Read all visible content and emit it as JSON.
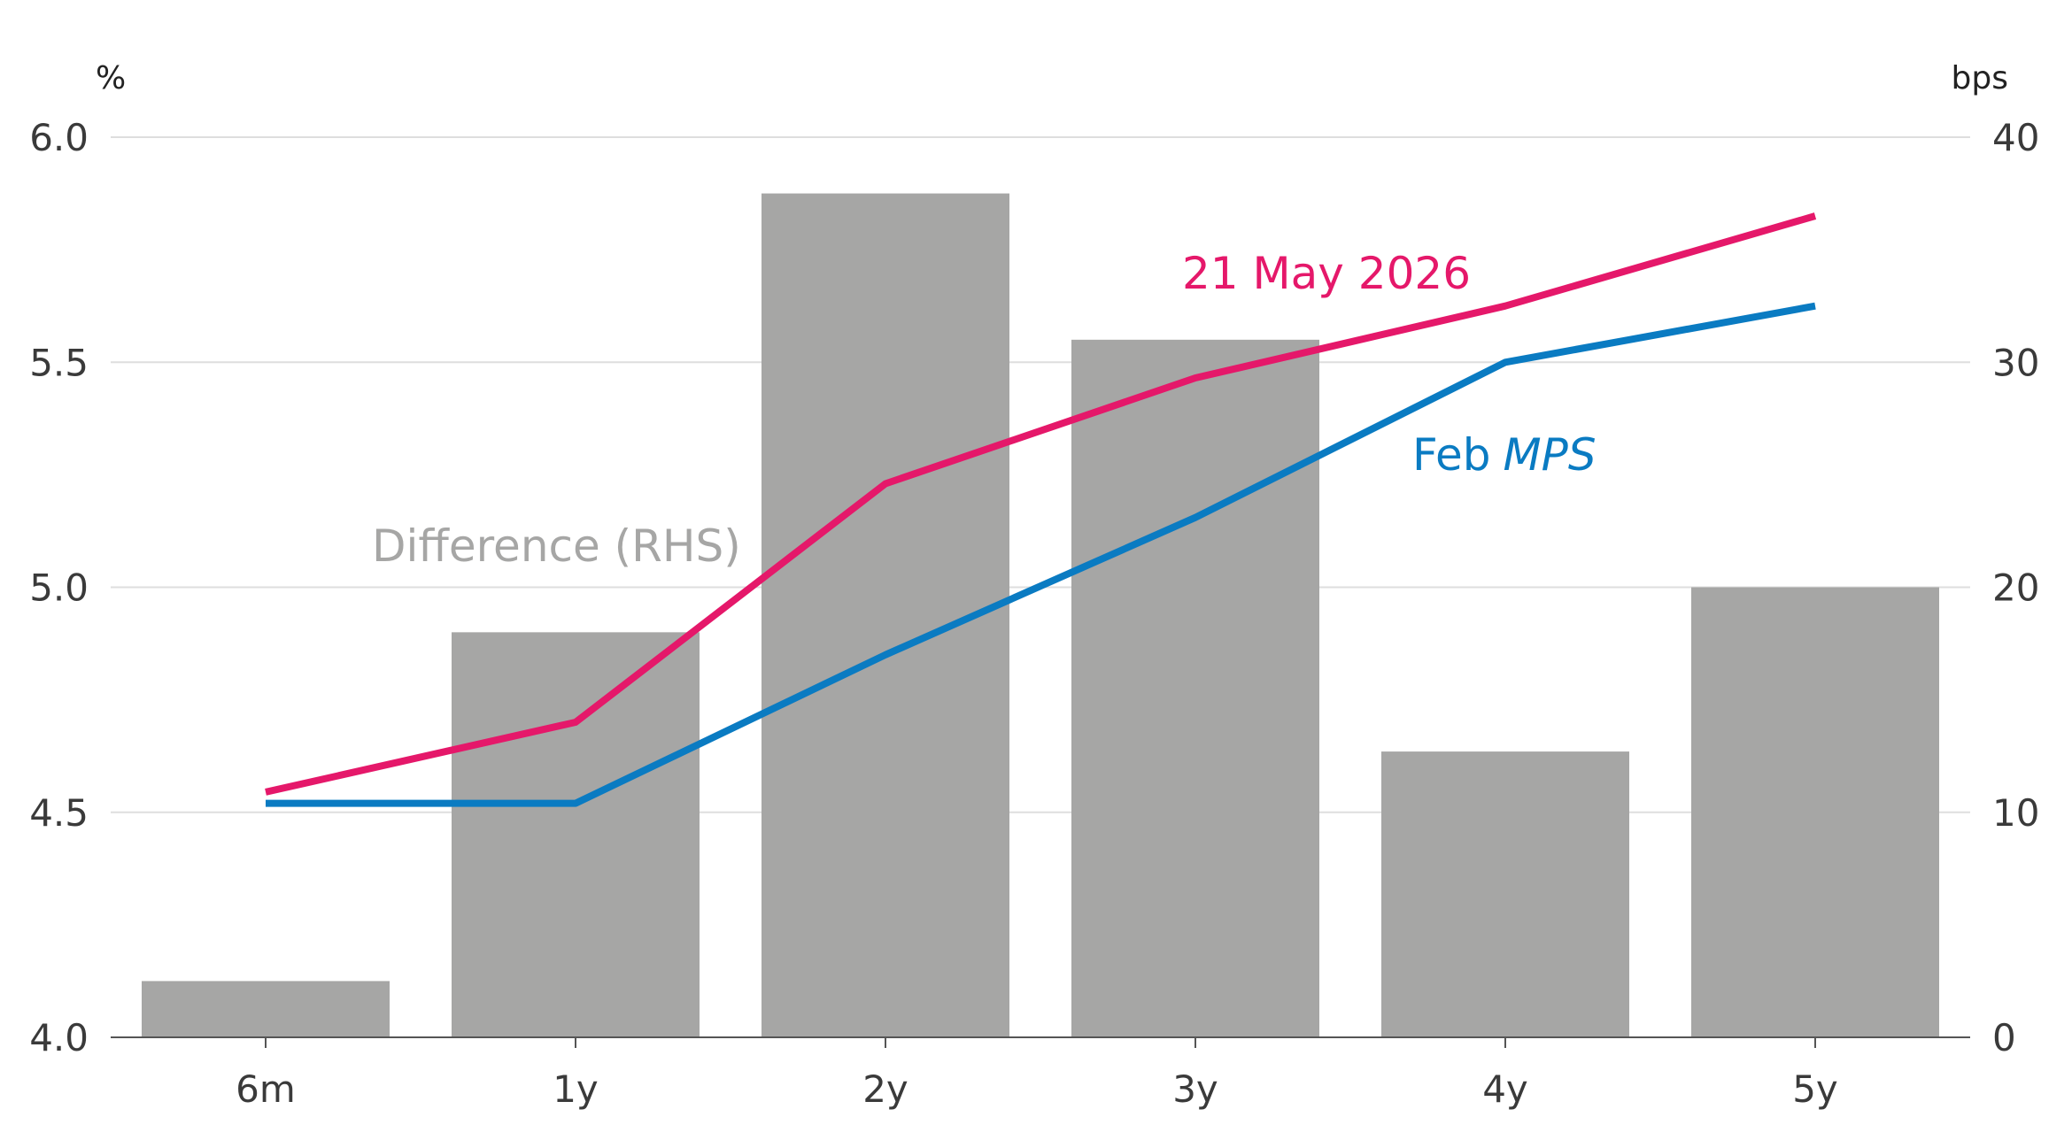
{
  "chart_data": {
    "type": "bar",
    "categories": [
      "6m",
      "1y",
      "2y",
      "3y",
      "4y",
      "5y"
    ],
    "left_axis": {
      "unit": "%",
      "ylim": [
        4.0,
        6.0
      ],
      "ticks": [
        "4.0",
        "4.5",
        "5.0",
        "5.5",
        "6.0"
      ]
    },
    "right_axis": {
      "unit": "bps",
      "ylim": [
        0,
        40
      ],
      "ticks": [
        "0",
        "10",
        "20",
        "30",
        "40"
      ]
    },
    "grid": true,
    "series": [
      {
        "name": "Difference (RHS)",
        "type": "bar",
        "axis": "right",
        "color": "#a6a6a5",
        "values": [
          2.5,
          18.0,
          37.5,
          31.0,
          12.7,
          20.0
        ]
      },
      {
        "name": "21 May 2026",
        "type": "line",
        "axis": "left",
        "color": "#e5186a",
        "values": [
          4.545,
          4.7,
          5.23,
          5.465,
          5.625,
          5.825
        ]
      },
      {
        "name": "Feb MPS",
        "name_parts": [
          "Feb",
          "MPS"
        ],
        "type": "line",
        "axis": "left",
        "color": "#0a7bc2",
        "values": [
          4.52,
          4.52,
          4.85,
          5.155,
          5.5,
          5.625
        ]
      }
    ]
  }
}
